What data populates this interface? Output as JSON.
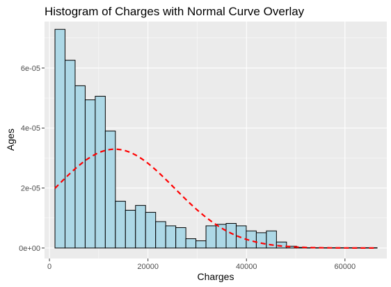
{
  "chart_data": {
    "type": "bar",
    "title": "Histogram of Charges with Normal Curve Overlay",
    "xlabel": "Charges",
    "ylabel": "Ages",
    "xlim": [
      -1000,
      68500
    ],
    "ylim": [
      -3.5e-06,
      7.55e-05
    ],
    "x_ticks": [
      {
        "value": 0,
        "label": "0"
      },
      {
        "value": 20000,
        "label": "20000"
      },
      {
        "value": 40000,
        "label": "40000"
      },
      {
        "value": 60000,
        "label": "60000"
      }
    ],
    "y_ticks": [
      {
        "value": 0,
        "label": "0e+00"
      },
      {
        "value": 2e-05,
        "label": "2e-05"
      },
      {
        "value": 4e-05,
        "label": "4e-05"
      },
      {
        "value": 6e-05,
        "label": "6e-05"
      }
    ],
    "grid": true,
    "legend": "none",
    "bin_start": 1122,
    "bin_width": 2044,
    "densities": [
      7.29e-05,
      6.26e-05,
      5.41e-05,
      4.94e-05,
      5.06e-05,
      3.9e-05,
      1.56e-05,
      1.26e-05,
      1.42e-05,
      1.19e-05,
      8.8e-06,
      7.4e-06,
      6.8e-06,
      3.1e-06,
      2.4e-06,
      7.4e-06,
      7.9e-06,
      8.2e-06,
      7.4e-06,
      5.7e-06,
      5.1e-06,
      5.7e-06,
      2e-06,
      6e-07,
      2e-07,
      1e-07,
      1e-07,
      1e-07,
      1e-07,
      1e-07,
      1e-07,
      1e-07
    ],
    "normal_curve": {
      "mean": 13270,
      "sd": 12110
    },
    "colors": {
      "bar_fill": "#add8e6",
      "bar_outline": "#000000",
      "curve": "#ff0000"
    }
  }
}
